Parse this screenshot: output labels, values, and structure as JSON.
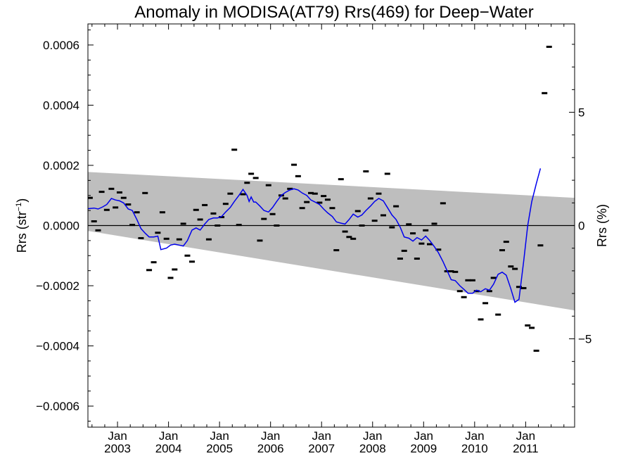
{
  "chart_data": {
    "type": "scatter",
    "title": "Anomaly in MODISA(AT79) Rrs(469) for Deep−Water",
    "ylabel_left": {
      "base": "Rrs (str",
      "sup": "−1",
      "close": ")"
    },
    "ylabel_right": "Rrs (%)",
    "xlabel": "",
    "xlim": [
      2002.42,
      2011.96
    ],
    "ylim_left": [
      -0.00067,
      0.00067
    ],
    "ylim_right": [
      -8.9,
      8.9
    ],
    "x_ticks": [
      {
        "x": 2003.0,
        "month": "Jan",
        "year": "2003"
      },
      {
        "x": 2004.0,
        "month": "Jan",
        "year": "2004"
      },
      {
        "x": 2005.0,
        "month": "Jan",
        "year": "2005"
      },
      {
        "x": 2006.0,
        "month": "Jan",
        "year": "2006"
      },
      {
        "x": 2007.0,
        "month": "Jan",
        "year": "2007"
      },
      {
        "x": 2008.0,
        "month": "Jan",
        "year": "2008"
      },
      {
        "x": 2009.0,
        "month": "Jan",
        "year": "2009"
      },
      {
        "x": 2010.0,
        "month": "Jan",
        "year": "2010"
      },
      {
        "x": 2011.0,
        "month": "Jan",
        "year": "2011"
      }
    ],
    "y_ticks_left": [
      {
        "v": 0.0006,
        "label": "0.0006"
      },
      {
        "v": 0.0004,
        "label": "0.0004"
      },
      {
        "v": 0.0002,
        "label": "0.0002"
      },
      {
        "v": 0.0,
        "label": "0.0000"
      },
      {
        "v": -0.0002,
        "label": "−0.0002"
      },
      {
        "v": -0.0004,
        "label": "−0.0004"
      },
      {
        "v": -0.0006,
        "label": "−0.0006"
      }
    ],
    "y_ticks_right": [
      {
        "v": 5,
        "label": "5"
      },
      {
        "v": 0,
        "label": "0"
      },
      {
        "v": -5,
        "label": "−5"
      }
    ],
    "band": {
      "x": [
        2002.42,
        2011.96
      ],
      "upper": [
        0.000178,
        9.2e-05
      ],
      "lower": [
        -1.8e-05,
        -0.000282
      ]
    },
    "colors": {
      "line": "#0000ee",
      "band": "#bebebe",
      "points": "#000000",
      "zero": "#000000"
    },
    "series": [
      {
        "type": "scatter",
        "points": [
          [
            2002.46,
            9.2e-05
          ],
          [
            2002.54,
            1.4e-05
          ],
          [
            2002.62,
            -1.6e-05
          ],
          [
            2002.69,
            0.000112
          ],
          [
            2002.79,
            5.2e-05
          ],
          [
            2002.88,
            0.000122
          ],
          [
            2002.96,
            6e-05
          ],
          [
            2003.04,
            0.00011
          ],
          [
            2003.12,
            9.2e-05
          ],
          [
            2003.21,
            7e-05
          ],
          [
            2003.29,
            2e-06
          ],
          [
            2003.38,
            4.4e-05
          ],
          [
            2003.46,
            -4.2e-05
          ],
          [
            2003.54,
            0.000108
          ],
          [
            2003.62,
            -0.000148
          ],
          [
            2003.71,
            -0.000122
          ],
          [
            2003.79,
            -2.4e-05
          ],
          [
            2003.88,
            4.4e-05
          ],
          [
            2003.96,
            -4.4e-05
          ],
          [
            2004.04,
            -0.000174
          ],
          [
            2004.12,
            -0.000146
          ],
          [
            2004.21,
            -4.6e-05
          ],
          [
            2004.29,
            6e-06
          ],
          [
            2004.37,
            -0.0001
          ],
          [
            2004.46,
            -0.00012
          ],
          [
            2004.54,
            5.2e-05
          ],
          [
            2004.62,
            2e-05
          ],
          [
            2004.71,
            6.8e-05
          ],
          [
            2004.79,
            -4.6e-05
          ],
          [
            2004.88,
            4e-05
          ],
          [
            2004.96,
            0.0
          ],
          [
            2005.04,
            2.8e-05
          ],
          [
            2005.12,
            7.2e-05
          ],
          [
            2005.21,
            0.000106
          ],
          [
            2005.29,
            0.000252
          ],
          [
            2005.38,
            2e-06
          ],
          [
            2005.46,
            0.000104
          ],
          [
            2005.54,
            0.000142
          ],
          [
            2005.62,
            0.000172
          ],
          [
            2005.71,
            0.000158
          ],
          [
            2005.79,
            -5e-05
          ],
          [
            2005.87,
            2.2e-05
          ],
          [
            2005.96,
            0.000134
          ],
          [
            2006.04,
            3.8e-05
          ],
          [
            2006.12,
            0.0
          ],
          [
            2006.21,
            0.0001
          ],
          [
            2006.29,
            9e-05
          ],
          [
            2006.38,
            0.000122
          ],
          [
            2006.46,
            0.000202
          ],
          [
            2006.54,
            0.000164
          ],
          [
            2006.62,
            5.8e-05
          ],
          [
            2006.71,
            7.8e-05
          ],
          [
            2006.79,
            0.000108
          ],
          [
            2006.87,
            0.000106
          ],
          [
            2006.96,
            7.6e-05
          ],
          [
            2007.04,
            9.8e-05
          ],
          [
            2007.12,
            8.6e-05
          ],
          [
            2007.21,
            5.8e-05
          ],
          [
            2007.29,
            -8.2e-05
          ],
          [
            2007.38,
            0.000154
          ],
          [
            2007.46,
            -2e-05
          ],
          [
            2007.54,
            -3.8e-05
          ],
          [
            2007.62,
            -4.4e-05
          ],
          [
            2007.71,
            4.8e-05
          ],
          [
            2007.79,
            0.0
          ],
          [
            2007.87,
            0.00018
          ],
          [
            2007.96,
            9e-05
          ],
          [
            2008.04,
            1.6e-05
          ],
          [
            2008.12,
            0.000106
          ],
          [
            2008.21,
            3.4e-05
          ],
          [
            2008.29,
            0.000172
          ],
          [
            2008.38,
            -6e-06
          ],
          [
            2008.46,
            6.4e-05
          ],
          [
            2008.54,
            -0.00011
          ],
          [
            2008.62,
            -8.4e-05
          ],
          [
            2008.71,
            4e-06
          ],
          [
            2008.79,
            -2.6e-05
          ],
          [
            2008.87,
            -0.00011
          ],
          [
            2008.96,
            -6e-05
          ],
          [
            2009.04,
            -1.6e-05
          ],
          [
            2009.12,
            -6.2e-05
          ],
          [
            2009.21,
            6e-06
          ],
          [
            2009.29,
            -8e-05
          ],
          [
            2009.38,
            7.4e-05
          ],
          [
            2009.46,
            -0.000152
          ],
          [
            2009.54,
            -0.000152
          ],
          [
            2009.62,
            -0.000154
          ],
          [
            2009.71,
            -0.000218
          ],
          [
            2009.79,
            -0.000238
          ],
          [
            2009.87,
            -0.000182
          ],
          [
            2009.96,
            -0.000182
          ],
          [
            2010.04,
            -0.000218
          ],
          [
            2010.12,
            -0.000312
          ],
          [
            2010.21,
            -0.000258
          ],
          [
            2010.29,
            -0.000218
          ],
          [
            2010.37,
            -0.000174
          ],
          [
            2010.46,
            -0.000296
          ],
          [
            2010.54,
            -8.2e-05
          ],
          [
            2010.62,
            -5.4e-05
          ],
          [
            2010.71,
            -0.000136
          ],
          [
            2010.79,
            -0.000144
          ],
          [
            2010.87,
            -0.000204
          ],
          [
            2010.96,
            -0.000208
          ],
          [
            2011.04,
            -0.000332
          ],
          [
            2011.12,
            -0.00034
          ],
          [
            2011.21,
            -0.000416
          ],
          [
            2011.29,
            -6.6e-05
          ],
          [
            2011.37,
            0.00044
          ],
          [
            2011.46,
            0.000594
          ]
        ]
      },
      {
        "type": "line",
        "points": [
          [
            2002.42,
            5.6e-05
          ],
          [
            2002.54,
            5.8e-05
          ],
          [
            2002.62,
            5.5e-05
          ],
          [
            2002.71,
            6.2e-05
          ],
          [
            2002.79,
            7e-05
          ],
          [
            2002.88,
            9e-05
          ],
          [
            2002.96,
            8.5e-05
          ],
          [
            2003.04,
            8.2e-05
          ],
          [
            2003.12,
            7.5e-05
          ],
          [
            2003.21,
            5.5e-05
          ],
          [
            2003.29,
            5e-05
          ],
          [
            2003.38,
            2e-05
          ],
          [
            2003.46,
            -1e-05
          ],
          [
            2003.54,
            -2.5e-05
          ],
          [
            2003.62,
            -3.8e-05
          ],
          [
            2003.71,
            -3.8e-05
          ],
          [
            2003.79,
            -3.5e-05
          ],
          [
            2003.85,
            -8e-05
          ],
          [
            2003.96,
            -7.5e-05
          ],
          [
            2004.04,
            -6.5e-05
          ],
          [
            2004.12,
            -6.2e-05
          ],
          [
            2004.21,
            -6.5e-05
          ],
          [
            2004.29,
            -6.8e-05
          ],
          [
            2004.37,
            -5e-05
          ],
          [
            2004.46,
            -1.5e-05
          ],
          [
            2004.54,
            -8e-06
          ],
          [
            2004.62,
            -1.5e-05
          ],
          [
            2004.71,
            5e-06
          ],
          [
            2004.79,
            2e-05
          ],
          [
            2004.88,
            2.5e-05
          ],
          [
            2004.96,
            2.5e-05
          ],
          [
            2005.04,
            3e-05
          ],
          [
            2005.12,
            4.5e-05
          ],
          [
            2005.21,
            6e-05
          ],
          [
            2005.29,
            8e-05
          ],
          [
            2005.38,
            0.0001
          ],
          [
            2005.46,
            0.00012
          ],
          [
            2005.54,
            0.0001
          ],
          [
            2005.58,
            8e-05
          ],
          [
            2005.62,
            9.5e-05
          ],
          [
            2005.67,
            7.8e-05
          ],
          [
            2005.71,
            7.8e-05
          ],
          [
            2005.79,
            6.5e-05
          ],
          [
            2005.87,
            5e-05
          ],
          [
            2005.96,
            4.5e-05
          ],
          [
            2006.04,
            6e-05
          ],
          [
            2006.12,
            8e-05
          ],
          [
            2006.21,
            0.0001
          ],
          [
            2006.29,
            0.00011
          ],
          [
            2006.38,
            0.000118
          ],
          [
            2006.46,
            0.000122
          ],
          [
            2006.54,
            0.000118
          ],
          [
            2006.62,
            0.000108
          ],
          [
            2006.71,
            0.0001
          ],
          [
            2006.79,
            8.5e-05
          ],
          [
            2006.87,
            7.8e-05
          ],
          [
            2006.96,
            7e-05
          ],
          [
            2007.04,
            5.5e-05
          ],
          [
            2007.12,
            4.2e-05
          ],
          [
            2007.21,
            3e-05
          ],
          [
            2007.29,
            1.2e-05
          ],
          [
            2007.38,
            8e-06
          ],
          [
            2007.46,
            5e-06
          ],
          [
            2007.54,
            2e-05
          ],
          [
            2007.62,
            3.8e-05
          ],
          [
            2007.71,
            2.8e-05
          ],
          [
            2007.79,
            3.5e-05
          ],
          [
            2007.87,
            5e-05
          ],
          [
            2007.96,
            6.5e-05
          ],
          [
            2008.04,
            8e-05
          ],
          [
            2008.12,
            9e-05
          ],
          [
            2008.21,
            8.2e-05
          ],
          [
            2008.29,
            6e-05
          ],
          [
            2008.38,
            3.5e-05
          ],
          [
            2008.46,
            2e-05
          ],
          [
            2008.54,
            -5e-06
          ],
          [
            2008.62,
            -3.8e-05
          ],
          [
            2008.71,
            -4.2e-05
          ],
          [
            2008.79,
            -5.2e-05
          ],
          [
            2008.87,
            -4e-05
          ],
          [
            2008.96,
            -4.8e-05
          ],
          [
            2009.04,
            -3.5e-05
          ],
          [
            2009.12,
            -5e-05
          ],
          [
            2009.21,
            -7e-05
          ],
          [
            2009.29,
            -9e-05
          ],
          [
            2009.38,
            -0.00012
          ],
          [
            2009.46,
            -0.00015
          ],
          [
            2009.54,
            -0.00018
          ],
          [
            2009.62,
            -0.000183
          ],
          [
            2009.71,
            -0.0002
          ],
          [
            2009.79,
            -0.000212
          ],
          [
            2009.87,
            -0.000225
          ],
          [
            2009.96,
            -0.000225
          ],
          [
            2010.04,
            -0.000215
          ],
          [
            2010.12,
            -0.00022
          ],
          [
            2010.21,
            -0.00021
          ],
          [
            2010.29,
            -0.000215
          ],
          [
            2010.37,
            -0.000195
          ],
          [
            2010.46,
            -0.000162
          ],
          [
            2010.54,
            -0.000155
          ],
          [
            2010.62,
            -0.000165
          ],
          [
            2010.71,
            -0.00021
          ],
          [
            2010.79,
            -0.000255
          ],
          [
            2010.87,
            -0.000245
          ],
          [
            2010.96,
            -0.00012
          ],
          [
            2011.04,
            0.0
          ],
          [
            2011.12,
            8e-05
          ],
          [
            2011.21,
            0.00014
          ],
          [
            2011.29,
            0.00019
          ]
        ]
      }
    ]
  }
}
